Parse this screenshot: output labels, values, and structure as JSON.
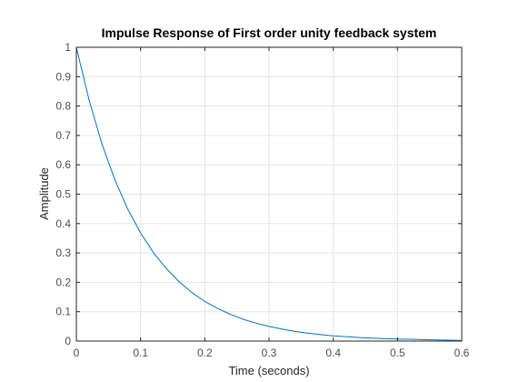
{
  "chart_data": {
    "type": "line",
    "title": "Impulse Response of First order unity feedback system",
    "xlabel": "Time (seconds)",
    "ylabel": "Amplitude",
    "xlim": [
      0,
      0.6
    ],
    "ylim": [
      0,
      1
    ],
    "xticks": [
      "0",
      "0.1",
      "0.2",
      "0.3",
      "0.4",
      "0.5",
      "0.6"
    ],
    "yticks": [
      "0",
      "0.1",
      "0.2",
      "0.3",
      "0.4",
      "0.5",
      "0.6",
      "0.7",
      "0.8",
      "0.9",
      "1"
    ],
    "grid": true,
    "series": [
      {
        "color": "#0072bd",
        "x": [
          0,
          0.02,
          0.04,
          0.06,
          0.08,
          0.1,
          0.12,
          0.14,
          0.16,
          0.18,
          0.2,
          0.22,
          0.24,
          0.26,
          0.28,
          0.3,
          0.32,
          0.34,
          0.36,
          0.38,
          0.4,
          0.42,
          0.44,
          0.46,
          0.48,
          0.5,
          0.52,
          0.54,
          0.56,
          0.58,
          0.6
        ],
        "y": [
          1.0,
          0.819,
          0.67,
          0.549,
          0.449,
          0.368,
          0.301,
          0.247,
          0.202,
          0.165,
          0.135,
          0.111,
          0.091,
          0.074,
          0.061,
          0.05,
          0.041,
          0.033,
          0.027,
          0.022,
          0.018,
          0.015,
          0.012,
          0.01,
          0.008,
          0.007,
          0.006,
          0.005,
          0.004,
          0.003,
          0.002
        ]
      }
    ]
  }
}
